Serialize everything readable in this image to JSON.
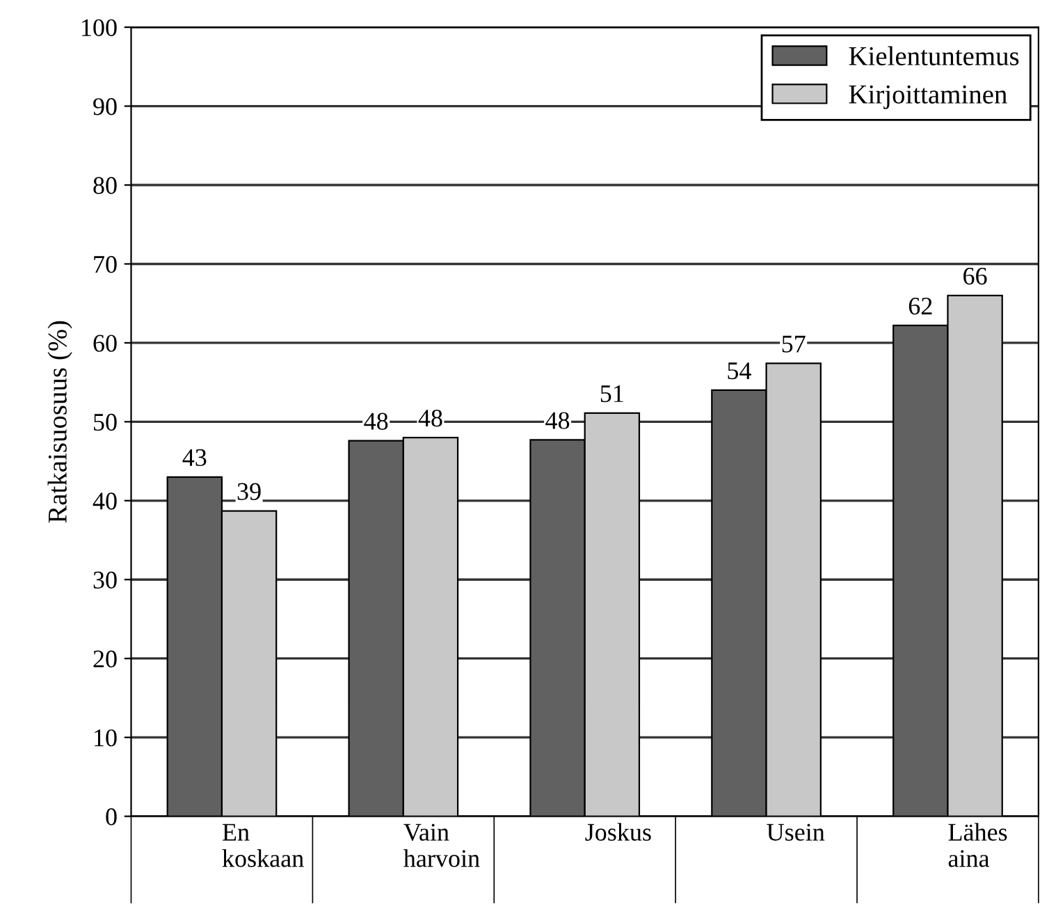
{
  "chart_data": {
    "type": "bar",
    "ylabel": "Ratkaisuosuus (%)",
    "categories": [
      "En koskaan",
      "Vain harvoin",
      "Joskus",
      "Usein",
      "Lähes aina"
    ],
    "series": [
      {
        "name": "Kielentuntemus",
        "color": "#616161",
        "values": [
          43.0,
          47.6,
          47.7,
          54.0,
          62.2
        ],
        "value_labels": [
          "43",
          "48",
          "48",
          "54",
          "62"
        ]
      },
      {
        "name": "Kirjoittaminen",
        "color": "#c8c8c8",
        "values": [
          38.7,
          48.0,
          51.1,
          57.4,
          66.0
        ],
        "value_labels": [
          "39",
          "48",
          "51",
          "57",
          "66"
        ]
      }
    ],
    "ylim": [
      0,
      100
    ],
    "yticks": [
      0,
      10,
      20,
      30,
      40,
      50,
      60,
      70,
      80,
      90,
      100
    ],
    "grid": "y",
    "legend": "top right"
  }
}
